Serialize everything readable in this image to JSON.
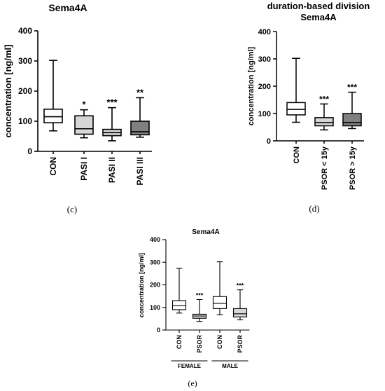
{
  "colors": {
    "con": "#ffffff",
    "light": "#d6d6d6",
    "dark": "#808080",
    "line": "#000000"
  },
  "chart_data": [
    {
      "type": "box",
      "title": "Sema4A",
      "caption": "(c)",
      "ylabel": "concentration [ng/ml]",
      "ylim": [
        0,
        400
      ],
      "yticks": [
        0,
        100,
        200,
        300,
        400
      ],
      "categories": [
        "CON",
        "PASI I",
        "PASI II",
        "PASI III"
      ],
      "boxes": [
        {
          "min": 68,
          "q1": 95,
          "median": 115,
          "q3": 140,
          "max": 302,
          "fill": "con",
          "sig": ""
        },
        {
          "min": 45,
          "q1": 57,
          "median": 75,
          "q3": 118,
          "max": 138,
          "fill": "light",
          "sig": "*"
        },
        {
          "min": 35,
          "q1": 52,
          "median": 62,
          "q3": 73,
          "max": 145,
          "fill": "light",
          "sig": "***"
        },
        {
          "min": 47,
          "q1": 55,
          "median": 65,
          "q3": 100,
          "max": 178,
          "fill": "dark",
          "sig": "**"
        }
      ]
    },
    {
      "type": "box",
      "title": "duration-based division\nSema4A",
      "caption": "(d)",
      "ylabel": "concentration [ng/ml]",
      "ylim": [
        0,
        400
      ],
      "yticks": [
        0,
        100,
        200,
        300,
        400
      ],
      "categories": [
        "CON",
        "PSOR < 15y",
        "PSOR > 15y"
      ],
      "boxes": [
        {
          "min": 68,
          "q1": 95,
          "median": 115,
          "q3": 140,
          "max": 302,
          "fill": "con",
          "sig": ""
        },
        {
          "min": 40,
          "q1": 55,
          "median": 67,
          "q3": 85,
          "max": 135,
          "fill": "light",
          "sig": "***"
        },
        {
          "min": 45,
          "q1": 55,
          "median": 67,
          "q3": 100,
          "max": 178,
          "fill": "dark",
          "sig": "***"
        }
      ]
    },
    {
      "type": "box",
      "title": "Sema4A",
      "caption": "(e)",
      "ylabel": "concentration [ng/ml]",
      "ylim": [
        0,
        400
      ],
      "yticks": [
        0,
        100,
        200,
        300,
        400
      ],
      "categories": [
        "CON",
        "PSOR",
        "CON",
        "PSOR"
      ],
      "groups": [
        {
          "label": "FEMALE",
          "span": [
            0,
            1
          ]
        },
        {
          "label": "MALE",
          "span": [
            2,
            3
          ]
        }
      ],
      "boxes": [
        {
          "min": 75,
          "q1": 90,
          "median": 108,
          "q3": 130,
          "max": 273,
          "fill": "con",
          "sig": ""
        },
        {
          "min": 38,
          "q1": 52,
          "median": 62,
          "q3": 70,
          "max": 135,
          "fill": "light",
          "sig": "***"
        },
        {
          "min": 68,
          "q1": 95,
          "median": 118,
          "q3": 148,
          "max": 302,
          "fill": "con",
          "sig": ""
        },
        {
          "min": 45,
          "q1": 58,
          "median": 72,
          "q3": 95,
          "max": 178,
          "fill": "light",
          "sig": "***"
        }
      ]
    }
  ]
}
